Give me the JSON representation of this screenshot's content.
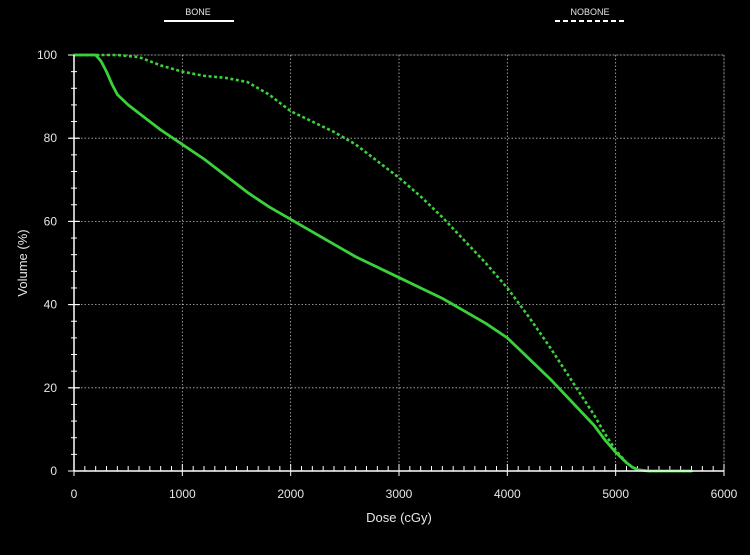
{
  "chart_data": {
    "type": "line",
    "title": "",
    "xlabel": "Dose (cGy)",
    "ylabel": "Volume (%)",
    "xlim": [
      0,
      6000
    ],
    "ylim": [
      0,
      100
    ],
    "xticks": [
      0,
      1000,
      2000,
      3000,
      4000,
      5000,
      6000
    ],
    "yticks": [
      0,
      20,
      40,
      60,
      80,
      100
    ],
    "x_minor_step": 100,
    "y_minor_step": 4,
    "grid": true,
    "legend_position": "top",
    "colors": {
      "background": "#000000",
      "line": "#3bd13b",
      "grid": "#bdbdbd",
      "axis": "#ffffff",
      "legend": "#ffffff"
    },
    "series": [
      {
        "name": "BONE",
        "style": "solid",
        "x": [
          0,
          200,
          250,
          300,
          350,
          400,
          500,
          600,
          800,
          1000,
          1200,
          1400,
          1600,
          1800,
          2000,
          2200,
          2400,
          2600,
          2800,
          3000,
          3200,
          3400,
          3600,
          3800,
          4000,
          4100,
          4200,
          4400,
          4600,
          4800,
          4900,
          5000,
          5100,
          5150,
          5200,
          5300,
          5500,
          5700
        ],
        "y": [
          100,
          100,
          98.5,
          96,
          93,
          90.5,
          88,
          86,
          82,
          78.5,
          75,
          71,
          67,
          63.5,
          60.5,
          57.5,
          54.5,
          51.5,
          49,
          46.5,
          44,
          41.5,
          38.5,
          35.5,
          32,
          29.5,
          27,
          22,
          16.5,
          11,
          7.5,
          4.5,
          2,
          1,
          0.3,
          0,
          0,
          0
        ]
      },
      {
        "name": "NOBONE",
        "style": "dashed",
        "x": [
          0,
          200,
          400,
          600,
          800,
          1000,
          1200,
          1400,
          1600,
          1800,
          2000,
          2200,
          2400,
          2600,
          2800,
          3000,
          3200,
          3400,
          3600,
          3800,
          4000,
          4200,
          4400,
          4600,
          4800,
          4900,
          5000,
          5100,
          5150,
          5200,
          5300,
          5500,
          5700
        ],
        "y": [
          100,
          100,
          100,
          99.5,
          97.5,
          96,
          95,
          94.5,
          93.5,
          90.5,
          86.5,
          84,
          81.5,
          78.5,
          74.5,
          70.5,
          66,
          61,
          55.5,
          50,
          44,
          37,
          29.5,
          21.5,
          13.5,
          9,
          5,
          2,
          1,
          0.3,
          0,
          0,
          0
        ]
      }
    ]
  }
}
